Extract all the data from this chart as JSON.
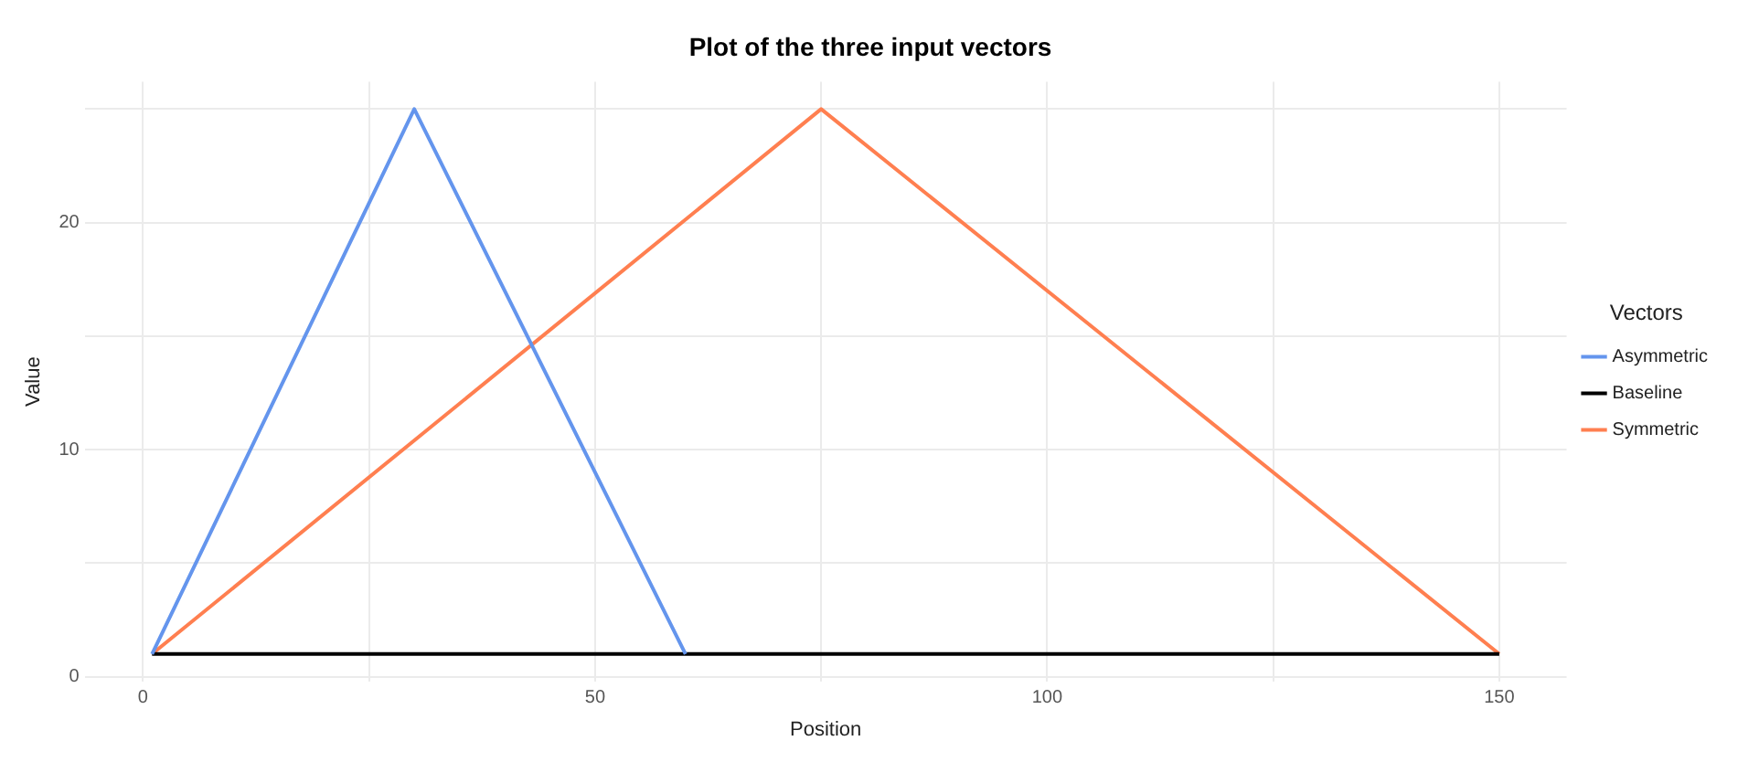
{
  "chart_data": {
    "type": "line",
    "title": "Plot of the three input vectors",
    "xlabel": "Position",
    "ylabel": "Value",
    "legend_title": "Vectors",
    "legend": "right",
    "grid": true,
    "marker": "none",
    "line_style": "solid",
    "xlim": [
      -6.45,
      157.45
    ],
    "xticks": [
      0,
      {
        "value": 25,
        "label": null
      },
      50,
      {
        "value": 75,
        "label": null
      },
      100,
      {
        "value": 125,
        "label": null
      },
      150
    ],
    "ylim": [
      -0.2,
      26.2
    ],
    "yticks": [
      0,
      {
        "value": 5,
        "label": null
      },
      10,
      {
        "value": 15,
        "label": null
      },
      20,
      {
        "value": 25,
        "label": null
      }
    ],
    "series": [
      {
        "name": "Asymmetric",
        "color": "#6495ed",
        "x": [
          1,
          30,
          60
        ],
        "values": [
          1,
          25,
          1
        ]
      },
      {
        "name": "Baseline",
        "color": "#000000",
        "x": [
          1,
          150
        ],
        "values": [
          1,
          1
        ]
      },
      {
        "name": "Symmetric",
        "color": "#ff7f50",
        "x": [
          1,
          75,
          150
        ],
        "values": [
          1,
          25,
          1
        ]
      }
    ]
  }
}
